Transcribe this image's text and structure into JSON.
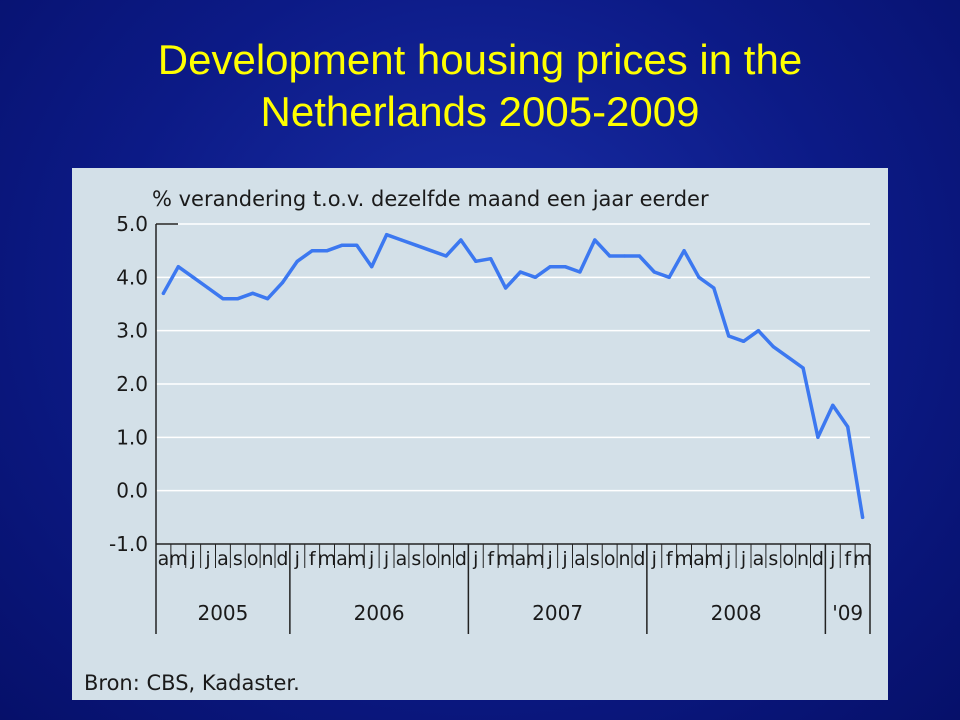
{
  "slide": {
    "title_line1": "Development housing prices in the",
    "title_line2": "Netherlands 2005-2009",
    "title_color": "#ffff00",
    "background_color": "#0c1a86"
  },
  "chart_data": {
    "type": "line",
    "title": "% verandering t.o.v. dezelfde maand een jaar eerder",
    "source": "Bron: CBS, Kadaster.",
    "ylim": [
      -1.0,
      5.0
    ],
    "y_ticks": [
      "5.0",
      "4.0",
      "3.0",
      "2.0",
      "1.0",
      "0.0",
      "-1.0"
    ],
    "grid": true,
    "line_color": "#3c78f0",
    "panel_color": "#d3e0e8",
    "month_labels": [
      "a",
      "m",
      "j",
      "j",
      "a",
      "s",
      "o",
      "n",
      "d",
      "j",
      "f",
      "m",
      "a",
      "m",
      "j",
      "j",
      "a",
      "s",
      "o",
      "n",
      "d",
      "j",
      "f",
      "m",
      "a",
      "m",
      "j",
      "j",
      "a",
      "s",
      "o",
      "n",
      "d",
      "j",
      "f",
      "m",
      "a",
      "m",
      "j",
      "j",
      "a",
      "s",
      "o",
      "n",
      "d",
      "j",
      "f",
      "m"
    ],
    "years": [
      {
        "label": "2005",
        "start": 0,
        "end": 9
      },
      {
        "label": "2006",
        "start": 9,
        "end": 21
      },
      {
        "label": "2007",
        "start": 21,
        "end": 33
      },
      {
        "label": "2008",
        "start": 33,
        "end": 45
      },
      {
        "label": "'09",
        "start": 45,
        "end": 48
      }
    ],
    "series": [
      {
        "values": [
          3.7,
          4.2,
          4.0,
          3.8,
          3.6,
          3.6,
          3.7,
          3.6,
          3.9,
          4.3,
          4.5,
          4.5,
          4.6,
          4.6,
          4.2,
          4.8,
          4.7,
          4.6,
          4.5,
          4.4,
          4.7,
          4.3,
          4.35,
          3.8,
          4.1,
          4.0,
          4.2,
          4.2,
          4.1,
          4.7,
          4.4,
          4.4,
          4.4,
          4.1,
          4.0,
          4.5,
          4.0,
          3.8,
          2.9,
          2.8,
          3.0,
          2.7,
          2.5,
          2.3,
          1.0,
          1.6,
          1.2,
          -0.5
        ]
      }
    ]
  }
}
